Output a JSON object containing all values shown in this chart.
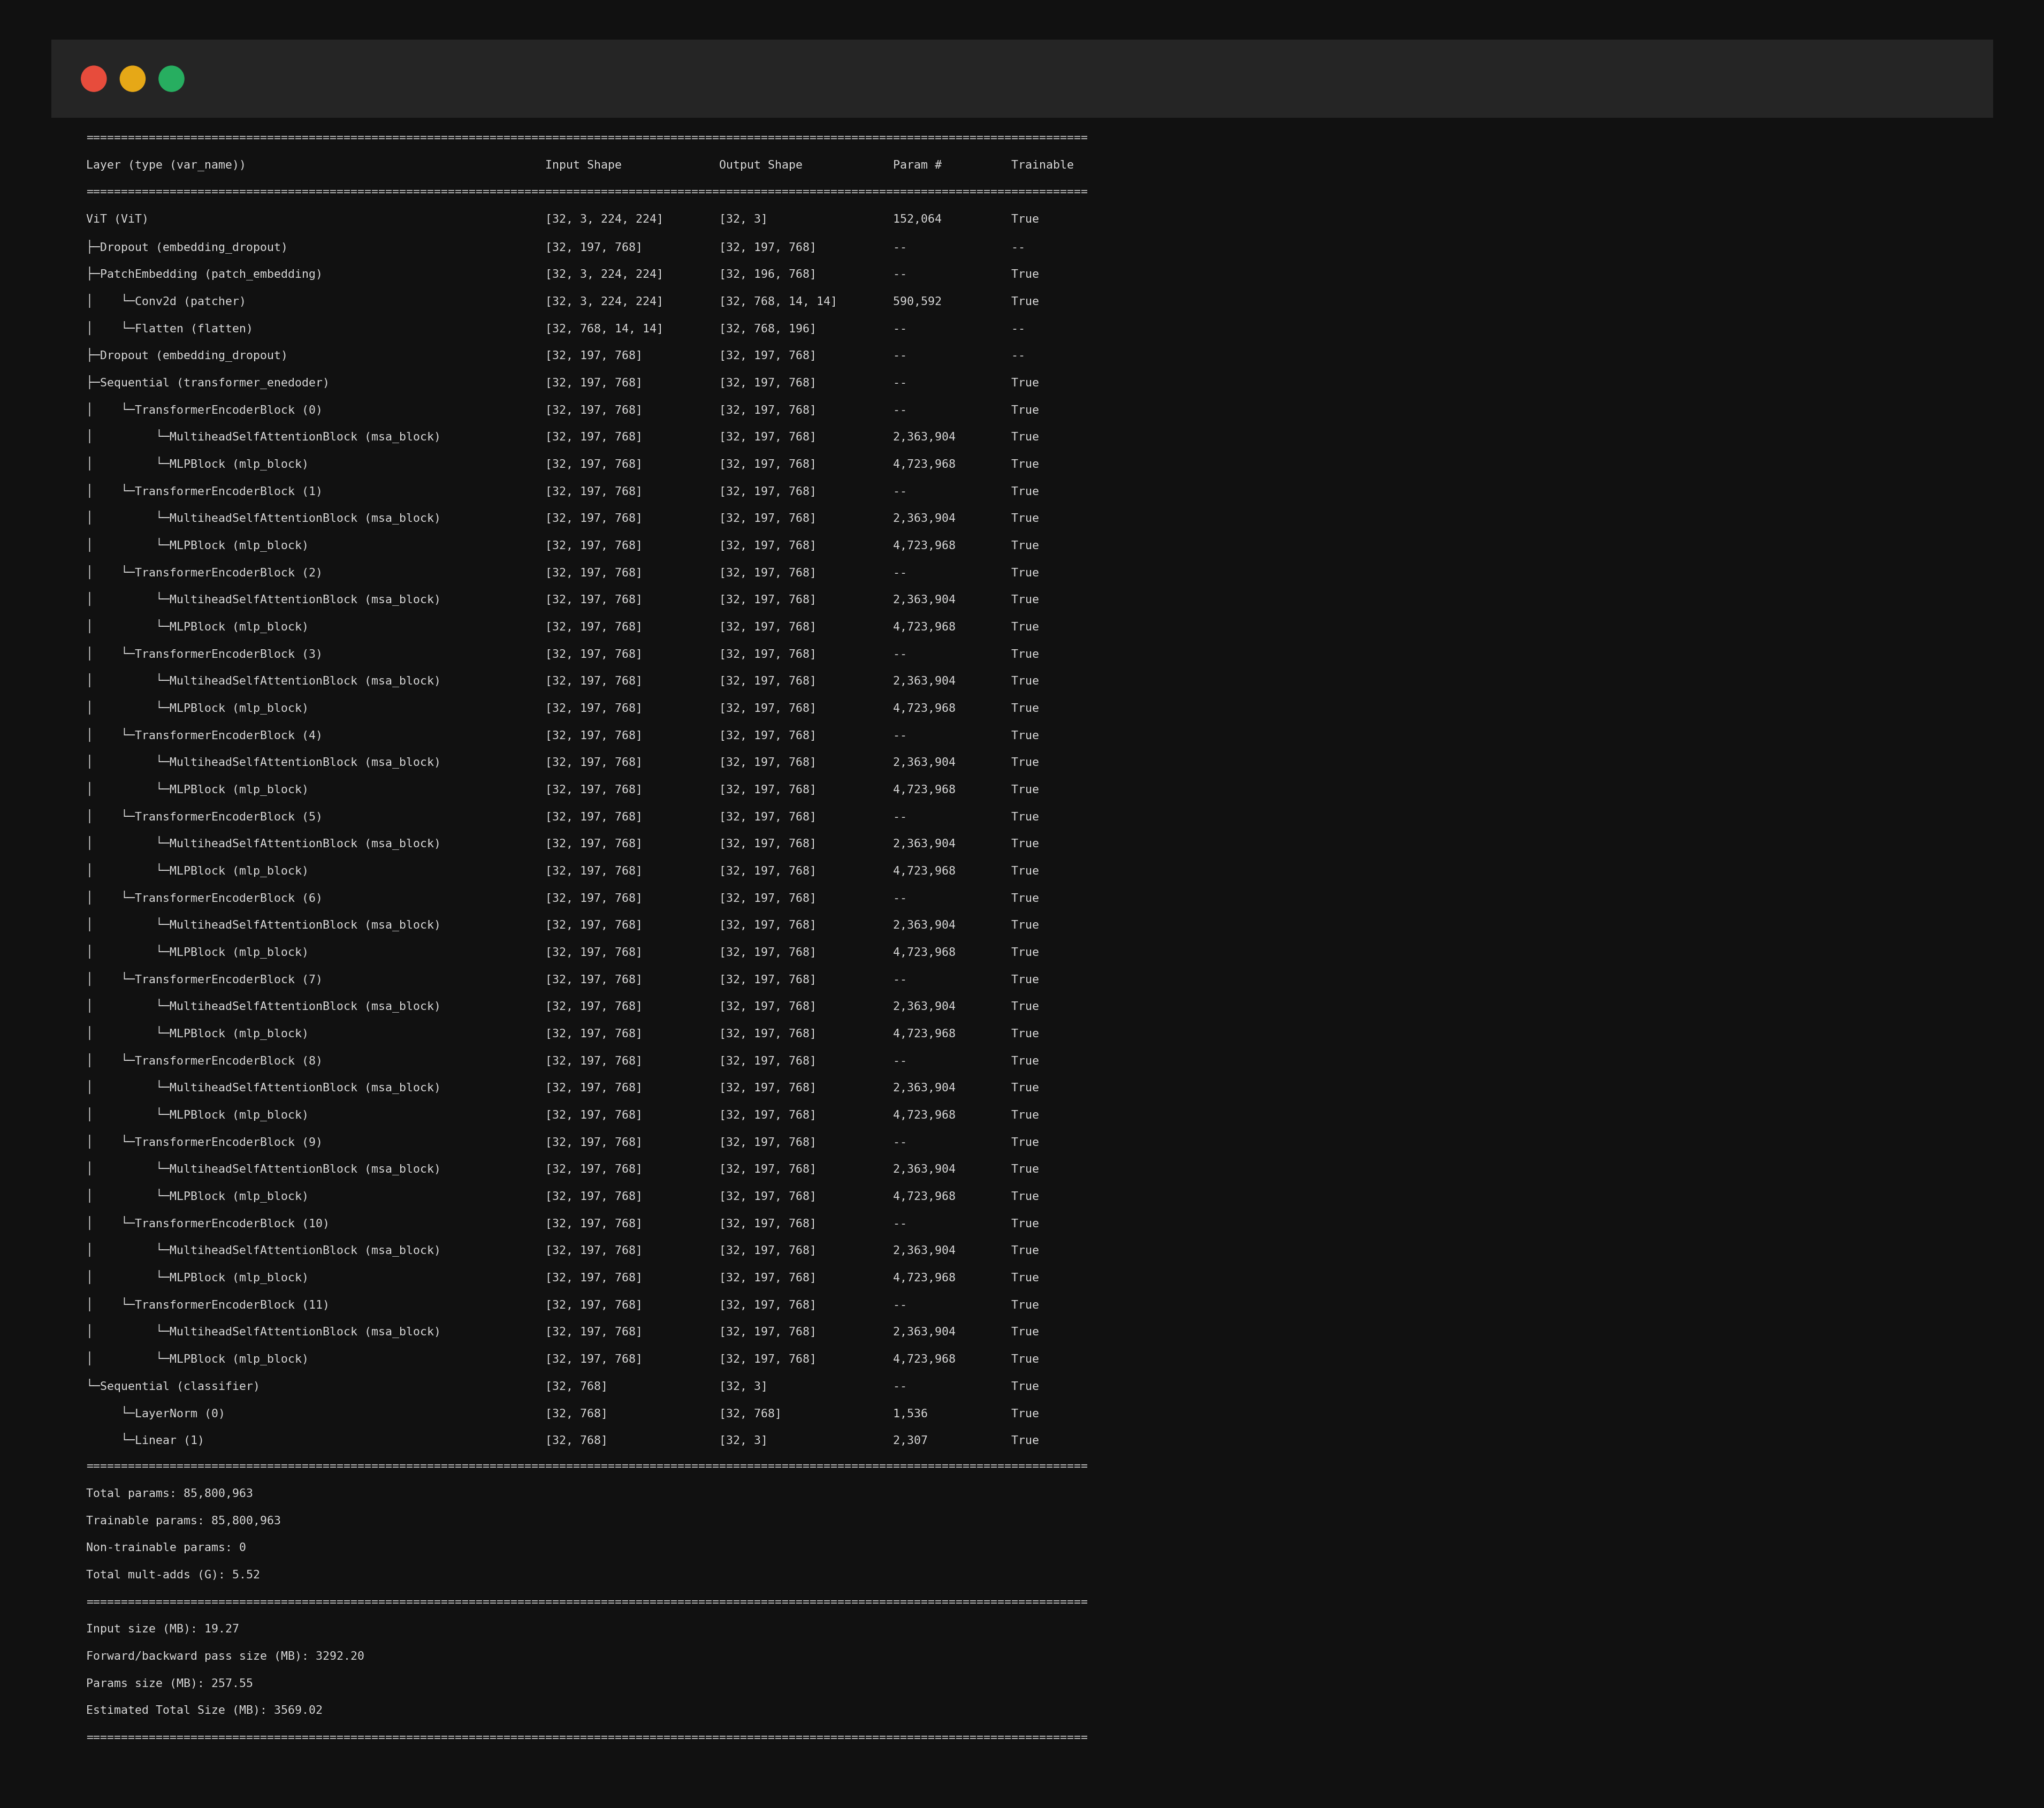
{
  "bg_outer": "#111111",
  "bg_window": "#2b2b2b",
  "bg_titlebar": "#252525",
  "text_color": "#d8d8d8",
  "font_family": "monospace",
  "dot_colors": [
    "#e74c3c",
    "#e6a817",
    "#27ae60"
  ],
  "font_size": 15.5,
  "content": [
    "================================================================================================================================================",
    "Layer (type (var_name))                                           Input Shape              Output Shape             Param #          Trainable",
    "================================================================================================================================================",
    "ViT (ViT)                                                         [32, 3, 224, 224]        [32, 3]                  152,064          True",
    "├─Dropout (embedding_dropout)                                     [32, 197, 768]           [32, 197, 768]           --               --",
    "├─PatchEmbedding (patch_embedding)                                [32, 3, 224, 224]        [32, 196, 768]           --               True",
    "│    └─Conv2d (patcher)                                           [32, 3, 224, 224]        [32, 768, 14, 14]        590,592          True",
    "│    └─Flatten (flatten)                                          [32, 768, 14, 14]        [32, 768, 196]           --               --",
    "├─Dropout (embedding_dropout)                                     [32, 197, 768]           [32, 197, 768]           --               --",
    "├─Sequential (transformer_enedoder)                               [32, 197, 768]           [32, 197, 768]           --               True",
    "│    └─TransformerEncoderBlock (0)                                [32, 197, 768]           [32, 197, 768]           --               True",
    "│         └─MultiheadSelfAttentionBlock (msa_block)               [32, 197, 768]           [32, 197, 768]           2,363,904        True",
    "│         └─MLPBlock (mlp_block)                                  [32, 197, 768]           [32, 197, 768]           4,723,968        True",
    "│    └─TransformerEncoderBlock (1)                                [32, 197, 768]           [32, 197, 768]           --               True",
    "│         └─MultiheadSelfAttentionBlock (msa_block)               [32, 197, 768]           [32, 197, 768]           2,363,904        True",
    "│         └─MLPBlock (mlp_block)                                  [32, 197, 768]           [32, 197, 768]           4,723,968        True",
    "│    └─TransformerEncoderBlock (2)                                [32, 197, 768]           [32, 197, 768]           --               True",
    "│         └─MultiheadSelfAttentionBlock (msa_block)               [32, 197, 768]           [32, 197, 768]           2,363,904        True",
    "│         └─MLPBlock (mlp_block)                                  [32, 197, 768]           [32, 197, 768]           4,723,968        True",
    "│    └─TransformerEncoderBlock (3)                                [32, 197, 768]           [32, 197, 768]           --               True",
    "│         └─MultiheadSelfAttentionBlock (msa_block)               [32, 197, 768]           [32, 197, 768]           2,363,904        True",
    "│         └─MLPBlock (mlp_block)                                  [32, 197, 768]           [32, 197, 768]           4,723,968        True",
    "│    └─TransformerEncoderBlock (4)                                [32, 197, 768]           [32, 197, 768]           --               True",
    "│         └─MultiheadSelfAttentionBlock (msa_block)               [32, 197, 768]           [32, 197, 768]           2,363,904        True",
    "│         └─MLPBlock (mlp_block)                                  [32, 197, 768]           [32, 197, 768]           4,723,968        True",
    "│    └─TransformerEncoderBlock (5)                                [32, 197, 768]           [32, 197, 768]           --               True",
    "│         └─MultiheadSelfAttentionBlock (msa_block)               [32, 197, 768]           [32, 197, 768]           2,363,904        True",
    "│         └─MLPBlock (mlp_block)                                  [32, 197, 768]           [32, 197, 768]           4,723,968        True",
    "│    └─TransformerEncoderBlock (6)                                [32, 197, 768]           [32, 197, 768]           --               True",
    "│         └─MultiheadSelfAttentionBlock (msa_block)               [32, 197, 768]           [32, 197, 768]           2,363,904        True",
    "│         └─MLPBlock (mlp_block)                                  [32, 197, 768]           [32, 197, 768]           4,723,968        True",
    "│    └─TransformerEncoderBlock (7)                                [32, 197, 768]           [32, 197, 768]           --               True",
    "│         └─MultiheadSelfAttentionBlock (msa_block)               [32, 197, 768]           [32, 197, 768]           2,363,904        True",
    "│         └─MLPBlock (mlp_block)                                  [32, 197, 768]           [32, 197, 768]           4,723,968        True",
    "│    └─TransformerEncoderBlock (8)                                [32, 197, 768]           [32, 197, 768]           --               True",
    "│         └─MultiheadSelfAttentionBlock (msa_block)               [32, 197, 768]           [32, 197, 768]           2,363,904        True",
    "│         └─MLPBlock (mlp_block)                                  [32, 197, 768]           [32, 197, 768]           4,723,968        True",
    "│    └─TransformerEncoderBlock (9)                                [32, 197, 768]           [32, 197, 768]           --               True",
    "│         └─MultiheadSelfAttentionBlock (msa_block)               [32, 197, 768]           [32, 197, 768]           2,363,904        True",
    "│         └─MLPBlock (mlp_block)                                  [32, 197, 768]           [32, 197, 768]           4,723,968        True",
    "│    └─TransformerEncoderBlock (10)                               [32, 197, 768]           [32, 197, 768]           --               True",
    "│         └─MultiheadSelfAttentionBlock (msa_block)               [32, 197, 768]           [32, 197, 768]           2,363,904        True",
    "│         └─MLPBlock (mlp_block)                                  [32, 197, 768]           [32, 197, 768]           4,723,968        True",
    "│    └─TransformerEncoderBlock (11)                               [32, 197, 768]           [32, 197, 768]           --               True",
    "│         └─MultiheadSelfAttentionBlock (msa_block)               [32, 197, 768]           [32, 197, 768]           2,363,904        True",
    "│         └─MLPBlock (mlp_block)                                  [32, 197, 768]           [32, 197, 768]           4,723,968        True",
    "└─Sequential (classifier)                                         [32, 768]                [32, 3]                  --               True",
    "     └─LayerNorm (0)                                              [32, 768]                [32, 768]                1,536            True",
    "     └─Linear (1)                                                 [32, 768]                [32, 3]                  2,307            True",
    "================================================================================================================================================",
    "Total params: 85,800,963",
    "Trainable params: 85,800,963",
    "Non-trainable params: 0",
    "Total mult-adds (G): 5.52",
    "================================================================================================================================================",
    "Input size (MB): 19.27",
    "Forward/backward pass size (MB): 3292.20",
    "Params size (MB): 257.55",
    "Estimated Total Size (MB): 3569.02",
    "================================================================================================================================================"
  ]
}
